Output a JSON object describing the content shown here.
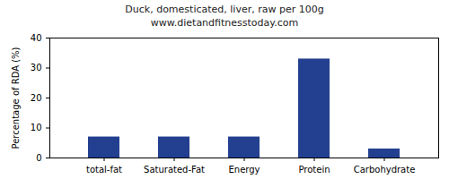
{
  "chart_data": {
    "type": "bar",
    "title": "Duck, domesticated, liver, raw per 100g",
    "subtitle": "www.dietandfitnesstoday.com",
    "y_label": "Percentage of RDA (%)",
    "categories": [
      "total-fat",
      "Saturated-Fat",
      "Energy",
      "Protein",
      "Carbohydrate"
    ],
    "values": [
      7,
      7,
      7,
      33,
      3
    ],
    "color": "#233f8f",
    "ylim": [
      0,
      40
    ],
    "yticks": [
      0,
      10,
      20,
      30,
      40
    ],
    "grid": false
  }
}
